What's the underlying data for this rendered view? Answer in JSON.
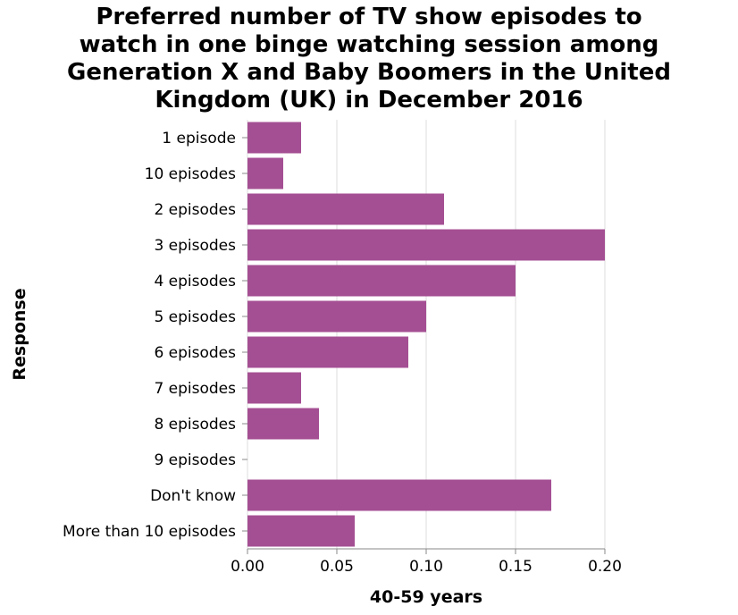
{
  "chart_data": {
    "type": "bar",
    "orientation": "horizontal",
    "title_lines": [
      "Preferred number of TV show episodes to",
      "watch in one binge watching session among",
      "Generation X and Baby Boomers in the United",
      "Kingdom (UK) in December 2016"
    ],
    "xlabel": "40-59 years",
    "ylabel": "Response",
    "categories": [
      "1 episode",
      "10 episodes",
      "2 episodes",
      "3 episodes",
      "4 episodes",
      "5 episodes",
      "6 episodes",
      "7 episodes",
      "8 episodes",
      "9 episodes",
      "Don't know",
      "More than 10 episodes"
    ],
    "values": [
      0.03,
      0.02,
      0.11,
      0.2,
      0.15,
      0.1,
      0.09,
      0.03,
      0.04,
      0,
      0.17,
      0.06
    ],
    "xlim": [
      0,
      0.2
    ],
    "xticks": [
      "0.00",
      "0.05",
      "0.10",
      "0.15",
      "0.20"
    ],
    "grid": true,
    "bar_color": "#a44f93",
    "grid_color": "#dddddd"
  }
}
